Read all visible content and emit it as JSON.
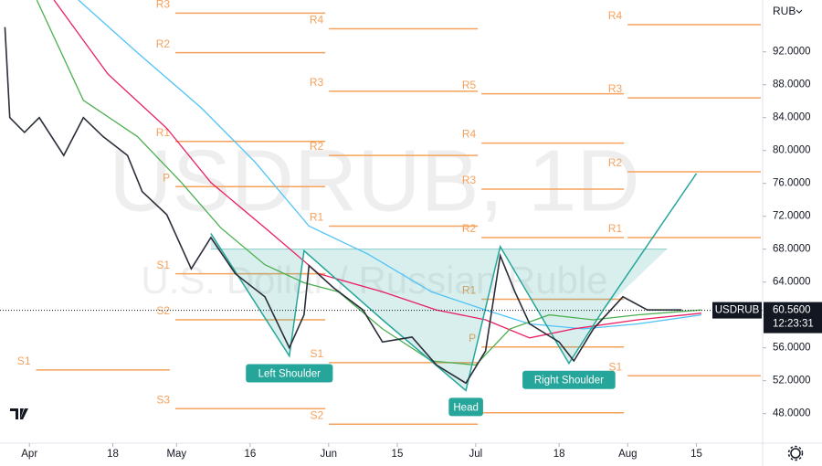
{
  "chart_data": {
    "type": "line",
    "symbol": "USDRUB",
    "interval_title": "USDRUB, 1D",
    "subtitle": "U.S. Dollar / Russian Ruble",
    "currency": "RUB",
    "last_price": {
      "value": 60.56,
      "label": "60.5600"
    },
    "countdown": "12:23:31",
    "xlim": [
      -6,
      149.5
    ],
    "ylim": [
      44.4,
      98.3
    ],
    "xticks": [
      {
        "value": 0,
        "label": "Apr"
      },
      {
        "value": 17,
        "label": "18"
      },
      {
        "value": 30,
        "label": "May"
      },
      {
        "value": 45,
        "label": "16"
      },
      {
        "value": 61,
        "label": "Jun"
      },
      {
        "value": 75,
        "label": "15"
      },
      {
        "value": 91,
        "label": "Jul"
      },
      {
        "value": 108,
        "label": "18"
      },
      {
        "value": 122,
        "label": "Aug"
      },
      {
        "value": 136,
        "label": "15"
      }
    ],
    "yticks": [
      {
        "value": 48,
        "label": "48.0000"
      },
      {
        "value": 52,
        "label": "52.0000"
      },
      {
        "value": 56,
        "label": "56.0000"
      },
      {
        "value": 60,
        "label": "60.0000"
      },
      {
        "value": 64,
        "label": "64.0000"
      },
      {
        "value": 68,
        "label": "68.0000"
      },
      {
        "value": 72,
        "label": "72.0000"
      },
      {
        "value": 76,
        "label": "76.0000"
      },
      {
        "value": 80,
        "label": "80.0000"
      },
      {
        "value": 84,
        "label": "84.0000"
      },
      {
        "value": 88,
        "label": "88.0000"
      },
      {
        "value": 92,
        "label": "92.0000"
      }
    ],
    "series": [
      {
        "color": "#2a2e39",
        "width": 1.6,
        "x": [
          -5,
          -4,
          -1,
          2,
          7,
          11,
          15,
          20,
          23,
          28,
          33,
          37,
          42,
          48,
          53,
          56,
          57,
          62,
          68,
          72,
          78,
          83,
          89,
          93,
          96,
          99,
          102,
          108,
          111,
          115,
          121,
          126,
          133
        ],
        "values": [
          95,
          84,
          82.2,
          84,
          79.4,
          84,
          81.7,
          79.4,
          75,
          72.2,
          65.6,
          69.4,
          65,
          62.2,
          56,
          60,
          66,
          63.3,
          60.6,
          56.7,
          57.3,
          53.9,
          51.7,
          55.6,
          67.2,
          62.8,
          58.9,
          56.7,
          54.4,
          58.3,
          62.2,
          60.6,
          60.6
        ]
      },
      {
        "color": "#4caf50",
        "width": 1.3,
        "x": [
          1.5,
          11,
          22,
          31,
          39,
          48,
          56,
          63,
          72,
          82,
          91,
          98,
          106,
          115,
          124,
          137
        ],
        "values": [
          98.3,
          86.1,
          81.7,
          76.1,
          70.6,
          66.1,
          63.9,
          62.8,
          58.3,
          54.4,
          53.9,
          58.3,
          60,
          59.4,
          60,
          60.6
        ]
      },
      {
        "color": "#e91e63",
        "width": 1.3,
        "x": [
          5,
          16,
          28,
          37,
          48,
          59,
          72,
          83,
          93,
          102,
          111,
          124,
          137
        ],
        "values": [
          98.3,
          89.3,
          82.7,
          76.1,
          70.6,
          65,
          62.8,
          60.6,
          59.4,
          57.2,
          58.3,
          59.4,
          60.2
        ]
      },
      {
        "color": "#4fc3f7",
        "width": 1.3,
        "x": [
          10,
          22,
          35,
          46,
          57,
          69,
          82,
          93,
          102,
          113,
          124,
          137
        ],
        "values": [
          98.3,
          91.9,
          85.2,
          78.6,
          70.8,
          67.4,
          62.8,
          60.6,
          58.9,
          58.3,
          58.9,
          60
        ]
      }
    ],
    "pattern": {
      "color": "#26a69a",
      "x": [
        37,
        53,
        56,
        72,
        89,
        96,
        110,
        117,
        136
      ],
      "values": [
        69.9,
        55,
        67.8,
        59.4,
        50.8,
        68.3,
        54.1,
        60.6,
        77.2
      ],
      "neckline": 68
    },
    "annotations": [
      {
        "text": "Left Shoulder",
        "x": 53,
        "y": 52.9
      },
      {
        "text": "Head",
        "x": 89,
        "y": 48.8
      },
      {
        "text": "Right Shoulder",
        "x": 110,
        "y": 52.1
      }
    ],
    "pivot_color": "#f5a25d",
    "pivots": [
      {
        "x": [
          1,
          29
        ],
        "levels": [
          {
            "label": "S1",
            "value": 53.3
          }
        ]
      },
      {
        "x": [
          29.4,
          60.7
        ],
        "levels": [
          {
            "label": "R3",
            "value": 96.7
          },
          {
            "label": "R2",
            "value": 91.9
          },
          {
            "label": "R1",
            "value": 81.1
          },
          {
            "label": "P",
            "value": 75.6
          },
          {
            "label": "S1",
            "value": 65
          },
          {
            "label": "S2",
            "value": 59.4
          },
          {
            "label": "S3",
            "value": 48.6
          }
        ]
      },
      {
        "x": [
          60.7,
          91.8
        ],
        "levels": [
          {
            "label": "R4",
            "value": 94.8
          },
          {
            "label": "R3",
            "value": 87.2
          },
          {
            "label": "R2",
            "value": 79.4
          },
          {
            "label": "R1",
            "value": 70.8
          },
          {
            "label": "S1",
            "value": 54.2
          },
          {
            "label": "S2",
            "value": 46.7
          }
        ]
      },
      {
        "x": [
          91.8,
          121.6
        ],
        "levels": [
          {
            "label": "R5",
            "value": 86.9
          },
          {
            "label": "R4",
            "value": 80.9
          },
          {
            "label": "R3",
            "value": 75.3
          },
          {
            "label": "R2",
            "value": 69.4
          },
          {
            "label": "R1",
            "value": 61.9
          },
          {
            "label": "P",
            "value": 56.1
          },
          {
            "label": "S1",
            "value": 48.1
          }
        ]
      },
      {
        "x": [
          121.6,
          149.5
        ],
        "levels": [
          {
            "label": "R4",
            "value": 95.3
          },
          {
            "label": "R3",
            "value": 86.4
          },
          {
            "label": "R2",
            "value": 77.4
          },
          {
            "label": "R1",
            "value": 69.4
          },
          {
            "label": "S1",
            "value": 52.6
          }
        ]
      }
    ]
  }
}
